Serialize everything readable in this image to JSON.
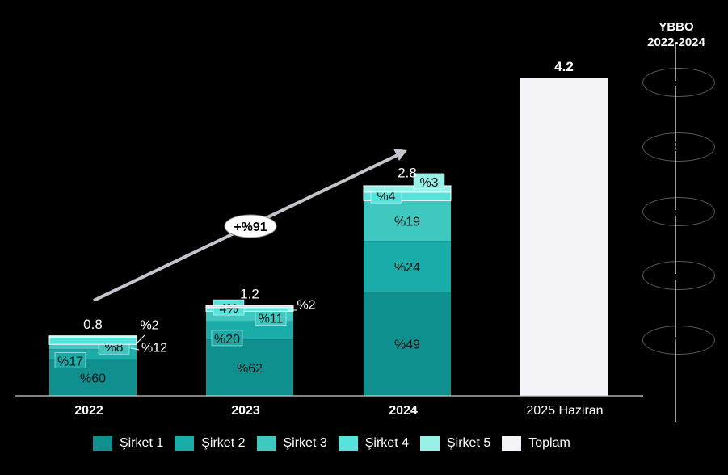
{
  "chart_data": {
    "type": "bar",
    "stacked": true,
    "categories": [
      "2022",
      "2023",
      "2024",
      "2025 Haziran"
    ],
    "totals": [
      0.8,
      1.2,
      2.8,
      4.2
    ],
    "total_labels": [
      "0.8",
      "1.2",
      "2.8",
      "4.2"
    ],
    "series": [
      {
        "name": "Şirket 1",
        "color": "#0f8f8e",
        "shares": [
          60,
          62,
          49,
          null
        ],
        "labels": [
          "%60",
          "%62",
          "%49",
          ""
        ]
      },
      {
        "name": "Şirket 2",
        "color": "#1aaca8",
        "shares": [
          17,
          20,
          24,
          null
        ],
        "labels": [
          "%17",
          "%20",
          "%24",
          ""
        ]
      },
      {
        "name": "Şirket 3",
        "color": "#3ec8c0",
        "shares": [
          8,
          11,
          19,
          null
        ],
        "labels": [
          "%8",
          "%11",
          "%19",
          ""
        ]
      },
      {
        "name": "Şirket 4",
        "color": "#56e3db",
        "shares": [
          12,
          4,
          4,
          null
        ],
        "labels": [
          "%12",
          "4%",
          "%4",
          ""
        ]
      },
      {
        "name": "Şirket 5",
        "color": "#98f1e8",
        "shares": [
          2,
          2,
          3,
          null
        ],
        "labels": [
          "%2",
          "%2",
          "%3",
          ""
        ]
      },
      {
        "name": "Toplam",
        "color": "#f4f4f8",
        "values": [
          null,
          null,
          null,
          4.2
        ]
      }
    ],
    "growth_arrow_label": "+%91",
    "ylim": [
      0,
      4.2
    ]
  },
  "side_panel": {
    "title_line1": "YBBO",
    "title_line2": "2022-2024",
    "pills": [
      {
        "label": "+%126",
        "color": "#98f1e8"
      },
      {
        "label": "+%8",
        "color": "#56e3db"
      },
      {
        "label": "+%204",
        "color": "#3ec8c0"
      },
      {
        "label": "+%124",
        "color": "#1aaca8"
      },
      {
        "label": "+%72",
        "color": "#0f8f8e"
      }
    ]
  },
  "legend": [
    "Şirket 1",
    "Şirket 2",
    "Şirket 3",
    "Şirket 4",
    "Şirket 5",
    "Toplam"
  ]
}
